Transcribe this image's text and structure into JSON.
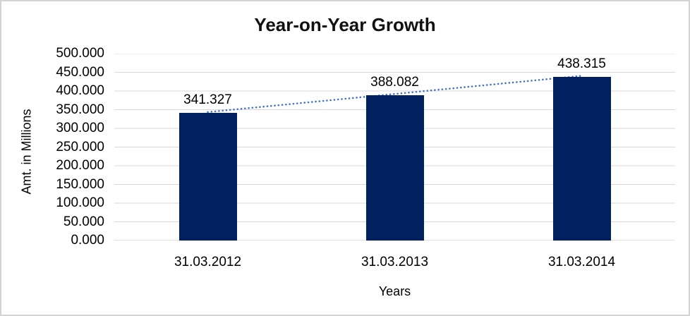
{
  "chart_data": {
    "type": "bar",
    "title": "Year-on-Year Growth",
    "xlabel": "Years",
    "ylabel": "Amt. in Millions",
    "categories": [
      "31.03.2012",
      "31.03.2013",
      "31.03.2014"
    ],
    "values": [
      341.327,
      388.082,
      438.315
    ],
    "data_labels": [
      "341.327",
      "388.082",
      "438.315"
    ],
    "y_tick_labels": [
      "0.000",
      "50.000",
      "100.000",
      "150.000",
      "200.000",
      "250.000",
      "300.000",
      "350.000",
      "400.000",
      "450.000",
      "500.000"
    ],
    "ylim": [
      0,
      500
    ],
    "y_step": 50,
    "grid": true,
    "legend": "none",
    "trendline": true,
    "colors": {
      "bar": "#002060",
      "trendline": "#4472C4",
      "gridline": "#D9D9D9",
      "axis_line": "#C6C6C6",
      "text": "#000000",
      "frame_border": "#D3D3D3",
      "background": "#FFFFFF"
    }
  }
}
